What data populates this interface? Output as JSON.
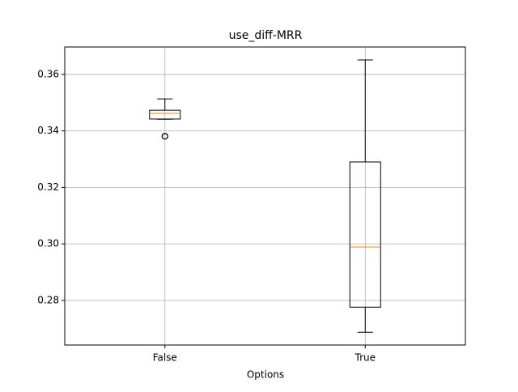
{
  "chart_data": {
    "type": "box",
    "title": "use_diff-MRR",
    "x_label": "Options",
    "categories": [
      "False",
      "True"
    ],
    "boxes": [
      {
        "low": 0.3441,
        "q1": 0.3442,
        "median": 0.3462,
        "q3": 0.3473,
        "high": 0.3513,
        "outliers": [
          0.3381
        ]
      },
      {
        "low": 0.2687,
        "q1": 0.2776,
        "median": 0.2989,
        "q3": 0.329,
        "high": 0.3651,
        "outliers": []
      }
    ],
    "box_color": "#000000",
    "median_color": "#ff7f0e",
    "ylim": [
      0.2642,
      0.3697
    ],
    "yticks": [
      {
        "value": 0.28,
        "label": "0.28"
      },
      {
        "value": 0.3,
        "label": "0.30"
      },
      {
        "value": 0.32,
        "label": "0.32"
      },
      {
        "value": 0.34,
        "label": "0.34"
      },
      {
        "value": 0.36,
        "label": "0.36"
      }
    ],
    "grid": true
  }
}
